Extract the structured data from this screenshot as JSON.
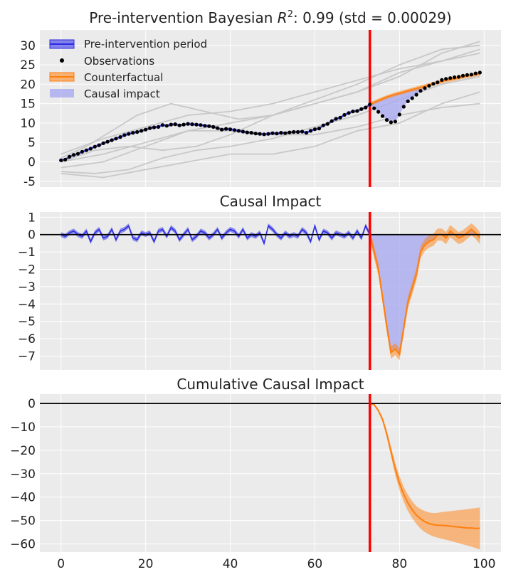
{
  "chart_data": [
    {
      "type": "line",
      "title_text": "Pre-intervention Bayesian ",
      "title_symbol": "R",
      "title_sup": "2",
      "title_rest": ": 0.99 (std = 0.00029)",
      "xlim": [
        -5,
        104
      ],
      "ylim": [
        -6.5,
        34
      ],
      "yticks": [
        "-5",
        "0",
        "5",
        "10",
        "15",
        "20",
        "25",
        "30"
      ],
      "ytick_values": [
        -5,
        0,
        5,
        10,
        15,
        20,
        25,
        30
      ],
      "intervention_x": 73,
      "legend": {
        "placement": "top-left",
        "entries": [
          "Pre-intervention period",
          "Observations",
          "Counterfactual",
          "Causal impact"
        ]
      },
      "colors": {
        "pre": "#2a2ae6",
        "observations": "#000000",
        "counterfactual": "#ff7f0e",
        "impact": "#aaaaf0",
        "intervention": "#ff0000",
        "gray": "#c8c8c8"
      },
      "series": [
        {
          "name": "Observations",
          "x": [
            0,
            1,
            2,
            3,
            4,
            5,
            6,
            7,
            8,
            9,
            10,
            11,
            12,
            13,
            14,
            15,
            16,
            17,
            18,
            19,
            20,
            21,
            22,
            23,
            24,
            25,
            26,
            27,
            28,
            29,
            30,
            31,
            32,
            33,
            34,
            35,
            36,
            37,
            38,
            39,
            40,
            41,
            42,
            43,
            44,
            45,
            46,
            47,
            48,
            49,
            50,
            51,
            52,
            53,
            54,
            55,
            56,
            57,
            58,
            59,
            60,
            61,
            62,
            63,
            64,
            65,
            66,
            67,
            68,
            69,
            70,
            71,
            72,
            73,
            74,
            75,
            76,
            77,
            78,
            79,
            80,
            81,
            82,
            83,
            84,
            85,
            86,
            87,
            88,
            89,
            90,
            91,
            92,
            93,
            94,
            95,
            96,
            97,
            98,
            99
          ],
          "y": [
            0.4,
            0.6,
            1.3,
            1.8,
            2.1,
            2.6,
            3.0,
            3.4,
            3.9,
            4.3,
            4.8,
            5.2,
            5.6,
            6.0,
            6.4,
            6.9,
            7.2,
            7.5,
            7.7,
            8.0,
            8.3,
            8.7,
            8.9,
            9.0,
            9.5,
            9.3,
            9.6,
            9.7,
            9.4,
            9.6,
            9.8,
            9.7,
            9.6,
            9.5,
            9.3,
            9.2,
            9.0,
            8.7,
            8.3,
            8.5,
            8.4,
            8.2,
            8.0,
            7.8,
            7.6,
            7.5,
            7.3,
            7.2,
            7.1,
            7.2,
            7.4,
            7.3,
            7.5,
            7.4,
            7.6,
            7.7,
            7.7,
            7.8,
            7.5,
            8.0,
            8.4,
            8.6,
            9.4,
            9.8,
            10.5,
            11.1,
            11.4,
            12.1,
            12.6,
            13.0,
            13.1,
            13.6,
            14.0,
            14.8,
            13.8,
            12.9,
            11.8,
            10.8,
            10.2,
            10.4,
            12.2,
            14.2,
            15.6,
            16.4,
            17.3,
            18.3,
            19.0,
            19.6,
            20.1,
            20.5,
            21.1,
            21.4,
            21.6,
            21.8,
            21.9,
            22.2,
            22.4,
            22.5,
            22.8,
            23.0
          ]
        }
      ],
      "counterfactual": {
        "x": [
          73,
          75,
          77,
          79,
          81,
          83,
          85,
          87,
          89,
          91,
          93,
          95,
          97,
          99
        ],
        "y": [
          14.8,
          15.8,
          16.7,
          17.4,
          18.0,
          18.6,
          19.2,
          19.8,
          20.4,
          21.0,
          21.4,
          21.9,
          22.3,
          22.7
        ]
      },
      "gray_series": [
        {
          "x": [
            0,
            10,
            20,
            30,
            40,
            50,
            60,
            70,
            80,
            90,
            99
          ],
          "y": [
            -1.5,
            0,
            4,
            8,
            10,
            12,
            15,
            18,
            23,
            26,
            29
          ]
        },
        {
          "x": [
            0,
            8,
            16,
            24,
            32,
            40,
            50,
            60,
            70,
            80,
            90,
            99
          ],
          "y": [
            -2.5,
            -3,
            -2,
            1,
            3,
            4,
            6,
            9,
            12,
            16,
            20,
            22
          ]
        },
        {
          "x": [
            0,
            10,
            20,
            30,
            40,
            50,
            60,
            70,
            80,
            90,
            99
          ],
          "y": [
            2,
            6,
            9,
            12,
            13,
            15,
            18,
            21,
            24,
            26,
            28
          ]
        },
        {
          "x": [
            0,
            8,
            16,
            24,
            32,
            40,
            50,
            60,
            70,
            80,
            90,
            99
          ],
          "y": [
            0,
            3,
            4,
            3,
            4,
            7,
            12,
            16,
            20,
            25,
            29,
            30
          ]
        },
        {
          "x": [
            0,
            10,
            20,
            30,
            40,
            50,
            60,
            70,
            80,
            90,
            99
          ],
          "y": [
            0,
            2,
            5,
            8,
            8,
            7,
            7,
            9,
            12,
            14,
            15
          ]
        },
        {
          "x": [
            0,
            10,
            20,
            30,
            40,
            50,
            60,
            70,
            80,
            90,
            99
          ],
          "y": [
            -3,
            -4,
            -2,
            0,
            2,
            2,
            4,
            8,
            10,
            15,
            18
          ]
        },
        {
          "x": [
            0,
            6,
            12,
            18,
            26,
            34,
            42,
            50,
            60,
            70,
            80,
            90,
            99
          ],
          "y": [
            1,
            4,
            8,
            12,
            15,
            13,
            11,
            12,
            15,
            18,
            22,
            28,
            31
          ]
        }
      ]
    },
    {
      "type": "line",
      "title": "Causal Impact",
      "xlim": [
        -5,
        104
      ],
      "ylim": [
        -7.8,
        1.3
      ],
      "yticks": [
        "1",
        "0",
        "−1",
        "−2",
        "−3",
        "−4",
        "−5",
        "−6",
        "−7"
      ],
      "ytick_values": [
        1,
        0,
        -1,
        -2,
        -3,
        -4,
        -5,
        -6,
        -7
      ],
      "intervention_x": 73,
      "pre": {
        "x": [
          0,
          1,
          2,
          3,
          4,
          5,
          6,
          7,
          8,
          9,
          10,
          11,
          12,
          13,
          14,
          15,
          16,
          17,
          18,
          19,
          20,
          21,
          22,
          23,
          24,
          25,
          26,
          27,
          28,
          29,
          30,
          31,
          32,
          33,
          34,
          35,
          36,
          37,
          38,
          39,
          40,
          41,
          42,
          43,
          44,
          45,
          46,
          47,
          48,
          49,
          50,
          51,
          52,
          53,
          54,
          55,
          56,
          57,
          58,
          59,
          60,
          61,
          62,
          63,
          64,
          65,
          66,
          67,
          68,
          69,
          70,
          71,
          72,
          73
        ],
        "y": [
          0.0,
          -0.1,
          0.1,
          0.2,
          0.0,
          -0.1,
          0.2,
          -0.4,
          0.1,
          0.3,
          -0.2,
          -0.1,
          0.3,
          -0.3,
          0.2,
          0.3,
          0.5,
          -0.2,
          -0.3,
          0.1,
          0.0,
          0.1,
          -0.4,
          0.2,
          0.3,
          -0.1,
          0.4,
          0.2,
          -0.3,
          0.0,
          0.3,
          -0.3,
          -0.1,
          0.2,
          0.1,
          -0.2,
          0.0,
          0.3,
          -0.2,
          0.1,
          0.3,
          0.2,
          -0.1,
          0.3,
          -0.2,
          0.0,
          -0.1,
          0.1,
          -0.5,
          0.5,
          0.3,
          0.0,
          -0.2,
          0.1,
          -0.1,
          0.0,
          -0.1,
          0.3,
          0.1,
          -0.4,
          0.5,
          -0.3,
          0.2,
          0.1,
          -0.2,
          0.1,
          0.0,
          -0.1,
          0.1,
          -0.2,
          0.2,
          -0.2,
          0.5,
          0.0
        ]
      },
      "post": {
        "x": [
          73,
          74,
          75,
          76,
          77,
          78,
          79,
          80,
          81,
          82,
          83,
          84,
          85,
          86,
          87,
          88,
          89,
          90,
          91,
          92,
          93,
          94,
          95,
          96,
          97,
          98,
          99
        ],
        "y": [
          0.0,
          -1.0,
          -2.0,
          -3.6,
          -5.3,
          -6.8,
          -6.6,
          -6.9,
          -5.4,
          -3.9,
          -3.1,
          -2.3,
          -1.0,
          -0.6,
          -0.4,
          -0.3,
          0.0,
          0.0,
          -0.2,
          0.2,
          0.0,
          -0.2,
          -0.1,
          0.1,
          0.3,
          0.1,
          -0.2
        ]
      },
      "band": 0.35
    },
    {
      "type": "line",
      "title": "Cumulative Causal Impact",
      "xlim": [
        -5,
        104
      ],
      "ylim": [
        -63.5,
        4
      ],
      "yticks": [
        "0",
        "−10",
        "−20",
        "−30",
        "−40",
        "−50",
        "−60"
      ],
      "ytick_values": [
        0,
        -10,
        -20,
        -30,
        -40,
        -50,
        -60
      ],
      "xticks": [
        "0",
        "20",
        "40",
        "60",
        "80",
        "100"
      ],
      "xtick_values": [
        0,
        20,
        40,
        60,
        80,
        100
      ],
      "intervention_x": 73,
      "cum": {
        "x": [
          73,
          74,
          75,
          76,
          77,
          78,
          79,
          80,
          81,
          82,
          83,
          84,
          85,
          86,
          87,
          88,
          89,
          90,
          91,
          92,
          93,
          94,
          95,
          96,
          97,
          98,
          99
        ],
        "y": [
          0,
          -1,
          -3,
          -6.6,
          -12,
          -18.7,
          -25.3,
          -32.2,
          -37.6,
          -41.5,
          -44.6,
          -46.9,
          -47.9,
          -48.5,
          -48.9,
          -49.2,
          -49.2,
          -49.2,
          -49.4,
          -49.2,
          -49.2,
          -49.4,
          -49.5,
          -49.4,
          -49.1,
          -49.0,
          -49.2
        ],
        "y_display": [
          0,
          -0.5,
          -3,
          -6.8,
          -13,
          -20.5,
          -28,
          -34,
          -38.8,
          -42.5,
          -45.4,
          -47.7,
          -49.3,
          -50.5,
          -51.3,
          -51.8,
          -52,
          -52.1,
          -52.2,
          -52.4,
          -52.6,
          -52.8,
          -53,
          -53.2,
          -53.2,
          -53.4,
          -53.3
        ],
        "lower": [
          0,
          -1,
          -3.6,
          -7.8,
          -14.5,
          -22.5,
          -30.5,
          -37,
          -42,
          -46,
          -49,
          -51.5,
          -53.5,
          -55,
          -56,
          -56.8,
          -57.3,
          -57.8,
          -58.2,
          -58.7,
          -59.2,
          -59.7,
          -60.2,
          -60.7,
          -61.2,
          -61.8,
          -62.3
        ],
        "upper": [
          0,
          0,
          -2.4,
          -5.8,
          -11.5,
          -18.5,
          -25.5,
          -31,
          -35.6,
          -39,
          -41.8,
          -43.9,
          -45.1,
          -46,
          -46.6,
          -46.8,
          -46.7,
          -46.4,
          -46.2,
          -46,
          -45.8,
          -45.6,
          -45.4,
          -45.2,
          -44.9,
          -44.7,
          -44.4
        ]
      }
    }
  ]
}
